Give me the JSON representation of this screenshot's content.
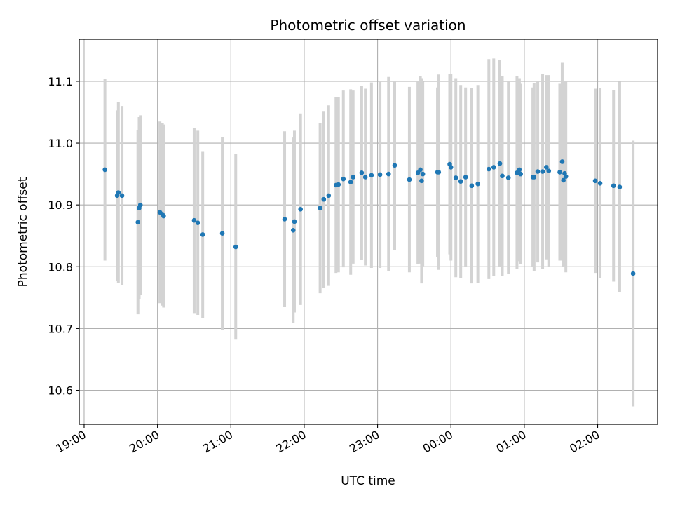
{
  "chart_data": {
    "type": "scatter",
    "title": "Photometric offset variation",
    "xlabel": "UTC time",
    "ylabel": "Photometric offset",
    "grid": true,
    "x_ticks": [
      "19:00",
      "20:00",
      "21:00",
      "22:00",
      "23:00",
      "00:00",
      "01:00",
      "02:00"
    ],
    "y_ticks": [
      "10.6",
      "10.7",
      "10.8",
      "10.9",
      "11.0",
      "11.1"
    ],
    "xlim": [
      "18:56",
      "02:49"
    ],
    "ylim": [
      10.545,
      11.168
    ],
    "colors": {
      "point": "#1f77b4",
      "errorbar": "#d3d3d3",
      "grid": "#b0b0b0"
    },
    "series": [
      {
        "x": [
          "19:17",
          "19:27",
          "19:28",
          "19:31",
          "19:44",
          "19:45",
          "19:46",
          "20:02",
          "20:04",
          "20:05",
          "20:30",
          "20:33",
          "20:37",
          "20:53",
          "21:04",
          "21:44",
          "21:51",
          "21:52",
          "21:57",
          "22:13",
          "22:16",
          "22:20",
          "22:26",
          "22:28",
          "22:32",
          "22:38",
          "22:40",
          "22:47",
          "22:50",
          "22:55",
          "23:02",
          "23:09",
          "23:14",
          "23:26",
          "23:33",
          "23:35",
          "23:36",
          "23:37",
          "23:49",
          "23:50",
          "23:59",
          "24:00",
          "24:04",
          "24:08",
          "24:12",
          "24:17",
          "24:22",
          "24:31",
          "24:35",
          "24:40",
          "24:42",
          "24:47",
          "24:54",
          "24:56",
          "24:57",
          "25:07",
          "25:08",
          "25:11",
          "25:15",
          "25:18",
          "25:20",
          "25:29",
          "25:31",
          "25:32",
          "25:33",
          "25:34",
          "25:58",
          "26:02",
          "26:13",
          "26:18",
          "26:29"
        ],
        "y": [
          10.957,
          10.915,
          10.92,
          10.915,
          10.872,
          10.895,
          10.9,
          10.888,
          10.885,
          10.882,
          10.875,
          10.871,
          10.852,
          10.854,
          10.832,
          10.877,
          10.859,
          10.873,
          10.893,
          10.895,
          10.909,
          10.915,
          10.932,
          10.933,
          10.942,
          10.937,
          10.945,
          10.952,
          10.945,
          10.948,
          10.949,
          10.95,
          10.964,
          10.941,
          10.952,
          10.957,
          10.939,
          10.95,
          10.953,
          10.953,
          10.966,
          10.961,
          10.944,
          10.938,
          10.945,
          10.931,
          10.934,
          10.958,
          10.961,
          10.967,
          10.947,
          10.944,
          10.952,
          10.957,
          10.95,
          10.945,
          10.945,
          10.954,
          10.954,
          10.961,
          10.955,
          10.953,
          10.97,
          10.94,
          10.951,
          10.946,
          10.939,
          10.935,
          10.931,
          10.929,
          10.789
        ],
        "yerr": [
          0.147,
          0.138,
          0.146,
          0.145,
          0.149,
          0.147,
          0.145,
          0.147,
          0.148,
          0.148,
          0.15,
          0.149,
          0.135,
          0.156,
          0.15,
          0.142,
          0.15,
          0.147,
          0.155,
          0.138,
          0.143,
          0.146,
          0.142,
          0.142,
          0.143,
          0.15,
          0.14,
          0.141,
          0.143,
          0.15,
          0.151,
          0.157,
          0.137,
          0.15,
          0.148,
          0.152,
          0.166,
          0.149,
          0.137,
          0.158,
          0.146,
          0.151,
          0.161,
          0.156,
          0.145,
          0.158,
          0.16,
          0.178,
          0.176,
          0.167,
          0.162,
          0.156,
          0.156,
          0.148,
          0.146,
          0.145,
          0.152,
          0.147,
          0.158,
          0.149,
          0.155,
          0.143,
          0.16,
          0.14,
          0.15,
          0.155,
          0.149,
          0.154,
          0.155,
          0.17,
          0.215
        ]
      }
    ]
  }
}
